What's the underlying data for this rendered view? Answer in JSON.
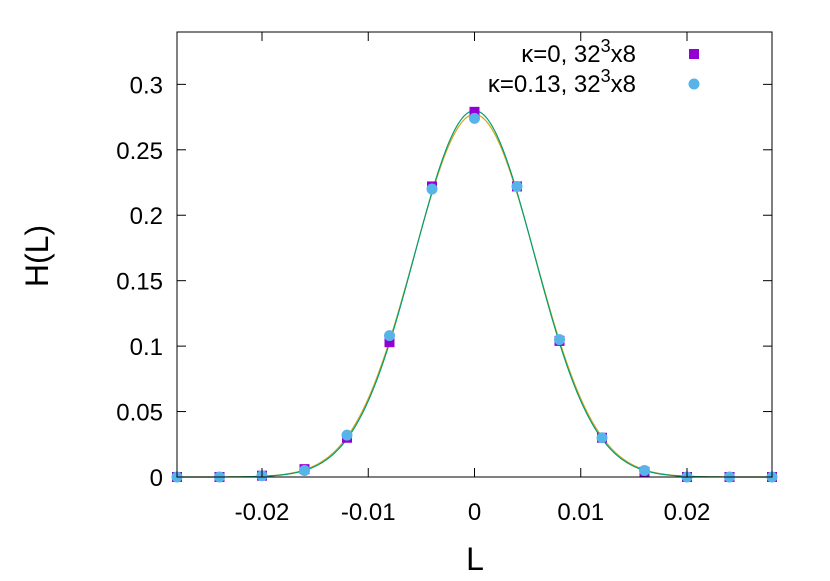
{
  "chart_data": {
    "type": "scatter",
    "xlabel": "L",
    "ylabel": "H(L)",
    "xlim": [
      -0.028,
      0.028
    ],
    "ylim": [
      0,
      0.34
    ],
    "x_ticks": [
      -0.02,
      -0.01,
      0,
      0.01,
      0.02
    ],
    "x_tick_labels": [
      "-0.02",
      "-0.01",
      "0",
      "0.01",
      "0.02"
    ],
    "y_ticks": [
      0,
      0.05,
      0.1,
      0.15,
      0.2,
      0.25,
      0.3
    ],
    "y_tick_labels": [
      "0",
      "0.05",
      "0.1",
      "0.15",
      "0.2",
      "0.25",
      "0.3"
    ],
    "legend_position": "top-right",
    "grid": false,
    "series": [
      {
        "name": "κ=0, 32³x8",
        "legend": {
          "main": "κ=0, 32",
          "sup": "3",
          "suffix": "x8"
        },
        "marker": "square",
        "color": "#9400d3",
        "fit_color": "#d4a51c",
        "x": [
          -0.028,
          -0.024,
          -0.02,
          -0.016,
          -0.012,
          -0.008,
          -0.004,
          0.0,
          0.004,
          0.008,
          0.012,
          0.016,
          0.02,
          0.024,
          0.028
        ],
        "y": [
          0.0,
          0.0,
          0.001,
          0.006,
          0.03,
          0.103,
          0.222,
          0.279,
          0.222,
          0.104,
          0.03,
          0.004,
          0.0,
          0.0,
          0.0
        ],
        "fit": {
          "amplitude": 0.277,
          "sigma": 0.005716
        }
      },
      {
        "name": "κ=0.13, 32³x8",
        "legend": {
          "main": "κ=0.13, 32",
          "sup": "3",
          "suffix": "x8"
        },
        "marker": "circle",
        "color": "#56b4e9",
        "fit_color": "#009e73",
        "x": [
          -0.028,
          -0.024,
          -0.02,
          -0.016,
          -0.012,
          -0.008,
          -0.004,
          0.0,
          0.004,
          0.008,
          0.012,
          0.016,
          0.02,
          0.024,
          0.028
        ],
        "y": [
          0.0,
          0.0,
          0.001,
          0.005,
          0.032,
          0.108,
          0.22,
          0.274,
          0.222,
          0.105,
          0.03,
          0.005,
          0.0,
          0.0,
          0.0
        ],
        "fit": {
          "amplitude": 0.28,
          "sigma": 0.00564
        }
      }
    ]
  }
}
